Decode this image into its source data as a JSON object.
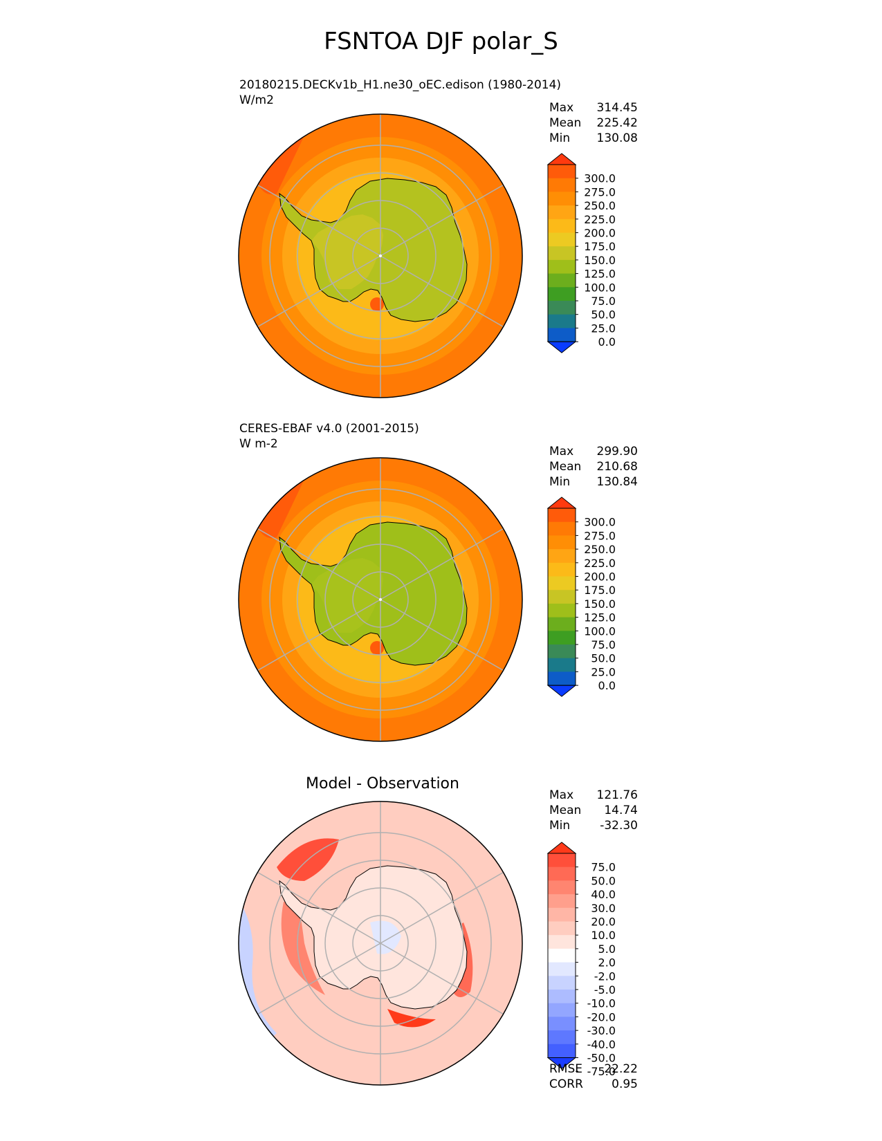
{
  "title": "FSNTOA DJF polar_S",
  "panels": [
    {
      "id": "test",
      "label_line1": "20180215.DECKv1b_H1.ne30_oEC.edison (1980-2014)",
      "label_line2": "W/m2",
      "stats": {
        "max_label": "Max",
        "max": "314.45",
        "mean_label": "Mean",
        "mean": "225.42",
        "min_label": "Min",
        "min": "130.08"
      },
      "colorbar": {
        "levels": [
          "300.0",
          "275.0",
          "250.0",
          "225.0",
          "200.0",
          "175.0",
          "150.0",
          "125.0",
          "100.0",
          "75.0",
          "50.0",
          "25.0",
          "0.0"
        ],
        "colors": [
          "#ff3a0f",
          "#ff5b0a",
          "#ff7a05",
          "#ff8e05",
          "#ffa514",
          "#fcba18",
          "#ecca22",
          "#c8c524",
          "#9fbf1a",
          "#6cae1d",
          "#3e9e22",
          "#3a8a57",
          "#1a7a8a",
          "#0d5cc8",
          "#0a3cff"
        ]
      }
    },
    {
      "id": "ref",
      "label_line1": "CERES-EBAF v4.0 (2001-2015)",
      "label_line2": "W m-2",
      "stats": {
        "max_label": "Max",
        "max": "299.90",
        "mean_label": "Mean",
        "mean": "210.68",
        "min_label": "Min",
        "min": "130.84"
      },
      "colorbar": {
        "levels": [
          "300.0",
          "275.0",
          "250.0",
          "225.0",
          "200.0",
          "175.0",
          "150.0",
          "125.0",
          "100.0",
          "75.0",
          "50.0",
          "25.0",
          "0.0"
        ],
        "colors": [
          "#ff3a0f",
          "#ff5b0a",
          "#ff7a05",
          "#ff8e05",
          "#ffa514",
          "#fcba18",
          "#ecca22",
          "#c8c524",
          "#9fbf1a",
          "#6cae1d",
          "#3e9e22",
          "#3a8a57",
          "#1a7a8a",
          "#0d5cc8",
          "#0a3cff"
        ]
      }
    },
    {
      "id": "diff",
      "title": "Model - Observation",
      "stats": {
        "max_label": "Max",
        "max": "121.76",
        "mean_label": "Mean",
        "mean": "14.74",
        "min_label": "Min",
        "min": "-32.30"
      },
      "extra": {
        "rmse_label": "RMSE",
        "rmse": "22.22",
        "corr_label": "CORR",
        "corr": "0.95"
      },
      "colorbar": {
        "levels": [
          "75.0",
          "50.0",
          "40.0",
          "30.0",
          "20.0",
          "10.0",
          "5.0",
          "2.0",
          "-2.0",
          "-5.0",
          "-10.0",
          "-20.0",
          "-30.0",
          "-40.0",
          "-50.0",
          "-75.0"
        ],
        "colors": [
          "#ff3a1a",
          "#ff4f3a",
          "#ff6a55",
          "#ff8570",
          "#ff9f8c",
          "#ffb6a6",
          "#ffcdc0",
          "#ffe5dd",
          "#ffffff",
          "#e2e8ff",
          "#c8d3ff",
          "#adbcff",
          "#93a6ff",
          "#798fff",
          "#5e78ff",
          "#4360ff",
          "#1a3cff"
        ]
      }
    }
  ],
  "chart_data": [
    {
      "type": "heatmap",
      "projection": "south-polar-stereographic",
      "title": "20180215.DECKv1b_H1.ne30_oEC.edison (1980-2014)",
      "units": "W/m2",
      "stats": {
        "max": 314.45,
        "mean": 225.42,
        "min": 130.08
      },
      "levels": [
        0,
        25,
        50,
        75,
        100,
        125,
        150,
        175,
        200,
        225,
        250,
        275,
        300
      ],
      "colorbar_extend": "both"
    },
    {
      "type": "heatmap",
      "projection": "south-polar-stereographic",
      "title": "CERES-EBAF v4.0 (2001-2015)",
      "units": "W m-2",
      "stats": {
        "max": 299.9,
        "mean": 210.68,
        "min": 130.84
      },
      "levels": [
        0,
        25,
        50,
        75,
        100,
        125,
        150,
        175,
        200,
        225,
        250,
        275,
        300
      ],
      "colorbar_extend": "both"
    },
    {
      "type": "heatmap",
      "projection": "south-polar-stereographic",
      "title": "Model - Observation",
      "stats": {
        "max": 121.76,
        "mean": 14.74,
        "min": -32.3,
        "rmse": 22.22,
        "corr": 0.95
      },
      "levels": [
        -75,
        -50,
        -40,
        -30,
        -20,
        -10,
        -5,
        -2,
        2,
        5,
        10,
        20,
        30,
        40,
        50,
        75
      ],
      "colorbar_extend": "both"
    }
  ]
}
